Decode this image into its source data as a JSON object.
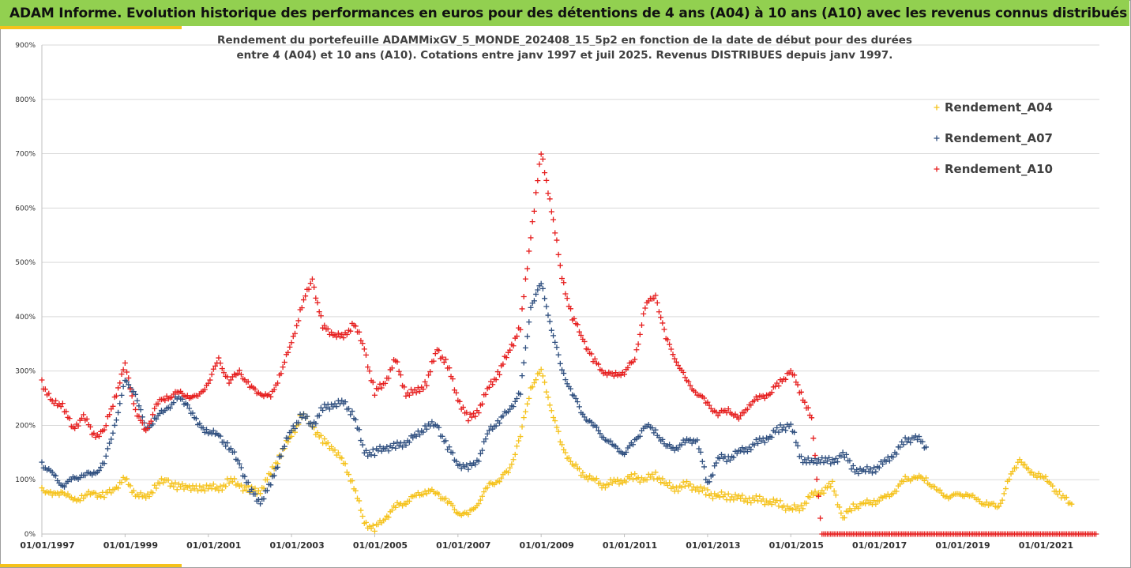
{
  "banner": {
    "title": "ADAM Informe. Evolution historique des performances en euros pour des détentions de 4 ans (A04) à 10 ans (A10) avec les revenus connus distribués"
  },
  "colors": {
    "banner_bg": "#92d050",
    "accent": "#f5c21b",
    "A04": "#f5c21b",
    "A07": "#2f4f7f",
    "A10": "#e61e1e"
  },
  "chart_data": {
    "type": "scatter",
    "title_lines": [
      "Rendement du portefeuille ADAMMixGV_5_MONDE_202408_15_5p2 en fonction de la date de début pour des durées",
      "entre 4 (A04) et 10 ans (A10). Cotations entre janv 1997 et juil 2025. Revenus DISTRIBUES depuis janv 1997."
    ],
    "x_type": "date",
    "xlim": [
      "1997-01-01",
      "2022-06-01"
    ],
    "ylim": [
      0,
      900
    ],
    "y_unit": "%",
    "y_ticks": [
      0,
      100,
      200,
      300,
      400,
      500,
      600,
      700,
      800,
      900
    ],
    "y_tick_labels": [
      "0%",
      "100%",
      "200%",
      "300%",
      "400%",
      "500%",
      "600%",
      "700%",
      "800%",
      "900%"
    ],
    "x_ticks": [
      "1997-01-01",
      "1999-01-01",
      "2001-01-01",
      "2003-01-01",
      "2005-01-01",
      "2007-01-01",
      "2009-01-01",
      "2011-01-01",
      "2013-01-01",
      "2015-01-01",
      "2017-01-01",
      "2019-01-01",
      "2021-01-01"
    ],
    "x_tick_labels": [
      "01/01/1997",
      "01/01/1999",
      "01/01/2001",
      "01/01/2003",
      "01/01/2005",
      "01/01/2007",
      "01/01/2009",
      "01/01/2011",
      "01/01/2013",
      "01/01/2015",
      "01/01/2017",
      "01/01/2019",
      "01/01/2021"
    ],
    "marker": "+",
    "grid": "horizontal",
    "legend_position": "top-right",
    "series": [
      {
        "name": "Rendement_A04",
        "color": "#f5c21b",
        "points": [
          [
            "1997-01",
            85
          ],
          [
            "1997-04",
            70
          ],
          [
            "1997-07",
            80
          ],
          [
            "1997-10",
            60
          ],
          [
            "1998-01",
            70
          ],
          [
            "1998-04",
            75
          ],
          [
            "1998-07",
            70
          ],
          [
            "1998-10",
            85
          ],
          [
            "1999-01",
            100
          ],
          [
            "1999-04",
            75
          ],
          [
            "1999-07",
            65
          ],
          [
            "1999-10",
            90
          ],
          [
            "2000-01",
            100
          ],
          [
            "2000-04",
            85
          ],
          [
            "2000-07",
            90
          ],
          [
            "2000-10",
            80
          ],
          [
            "2001-01",
            90
          ],
          [
            "2001-04",
            80
          ],
          [
            "2001-07",
            100
          ],
          [
            "2001-10",
            90
          ],
          [
            "2002-01",
            80
          ],
          [
            "2002-04",
            80
          ],
          [
            "2002-07",
            110
          ],
          [
            "2002-10",
            150
          ],
          [
            "2003-01",
            180
          ],
          [
            "2003-04",
            220
          ],
          [
            "2003-07",
            200
          ],
          [
            "2003-10",
            170
          ],
          [
            "2004-01",
            160
          ],
          [
            "2004-04",
            130
          ],
          [
            "2004-07",
            90
          ],
          [
            "2004-10",
            20
          ],
          [
            "2005-01",
            10
          ],
          [
            "2005-04",
            30
          ],
          [
            "2005-07",
            50
          ],
          [
            "2005-10",
            60
          ],
          [
            "2006-01",
            70
          ],
          [
            "2006-04",
            80
          ],
          [
            "2006-07",
            75
          ],
          [
            "2006-10",
            60
          ],
          [
            "2007-01",
            40
          ],
          [
            "2007-04",
            35
          ],
          [
            "2007-07",
            60
          ],
          [
            "2007-10",
            90
          ],
          [
            "2008-01",
            100
          ],
          [
            "2008-04",
            120
          ],
          [
            "2008-07",
            180
          ],
          [
            "2008-10",
            270
          ],
          [
            "2009-01",
            300
          ],
          [
            "2009-04",
            230
          ],
          [
            "2009-07",
            160
          ],
          [
            "2009-10",
            130
          ],
          [
            "2010-01",
            110
          ],
          [
            "2010-04",
            100
          ],
          [
            "2010-07",
            90
          ],
          [
            "2010-10",
            95
          ],
          [
            "2011-01",
            100
          ],
          [
            "2011-04",
            105
          ],
          [
            "2011-07",
            100
          ],
          [
            "2011-10",
            110
          ],
          [
            "2012-01",
            90
          ],
          [
            "2012-04",
            85
          ],
          [
            "2012-07",
            90
          ],
          [
            "2012-10",
            85
          ],
          [
            "2013-01",
            75
          ],
          [
            "2013-04",
            70
          ],
          [
            "2013-07",
            70
          ],
          [
            "2013-10",
            65
          ],
          [
            "2014-01",
            65
          ],
          [
            "2014-04",
            62
          ],
          [
            "2014-07",
            60
          ],
          [
            "2014-10",
            55
          ],
          [
            "2015-01",
            45
          ],
          [
            "2015-04",
            50
          ],
          [
            "2015-07",
            70
          ],
          [
            "2015-10",
            80
          ],
          [
            "2016-01",
            90
          ],
          [
            "2016-04",
            30
          ],
          [
            "2016-07",
            50
          ],
          [
            "2016-10",
            55
          ],
          [
            "2017-01",
            60
          ],
          [
            "2017-04",
            65
          ],
          [
            "2017-07",
            80
          ],
          [
            "2017-10",
            100
          ],
          [
            "2018-01",
            105
          ],
          [
            "2018-04",
            100
          ],
          [
            "2018-07",
            80
          ],
          [
            "2018-10",
            70
          ],
          [
            "2019-01",
            70
          ],
          [
            "2019-04",
            75
          ],
          [
            "2019-07",
            60
          ],
          [
            "2019-10",
            55
          ],
          [
            "2020-01",
            50
          ],
          [
            "2020-04",
            100
          ],
          [
            "2020-07",
            140
          ],
          [
            "2020-10",
            110
          ],
          [
            "2021-01",
            110
          ],
          [
            "2021-04",
            90
          ],
          [
            "2021-07",
            70
          ],
          [
            "2021-10",
            55
          ]
        ]
      },
      {
        "name": "Rendement_A07",
        "color": "#2f4f7f",
        "points": [
          [
            "1997-01",
            130
          ],
          [
            "1997-04",
            110
          ],
          [
            "1997-07",
            90
          ],
          [
            "1997-10",
            100
          ],
          [
            "1998-01",
            110
          ],
          [
            "1998-04",
            110
          ],
          [
            "1998-07",
            130
          ],
          [
            "1998-10",
            200
          ],
          [
            "1999-01",
            280
          ],
          [
            "1999-04",
            260
          ],
          [
            "1999-07",
            190
          ],
          [
            "1999-10",
            215
          ],
          [
            "2000-01",
            230
          ],
          [
            "2000-04",
            250
          ],
          [
            "2000-07",
            240
          ],
          [
            "2000-10",
            200
          ],
          [
            "2001-01",
            190
          ],
          [
            "2001-04",
            180
          ],
          [
            "2001-07",
            160
          ],
          [
            "2001-10",
            130
          ],
          [
            "2002-01",
            80
          ],
          [
            "2002-04",
            60
          ],
          [
            "2002-07",
            90
          ],
          [
            "2002-10",
            150
          ],
          [
            "2003-01",
            190
          ],
          [
            "2003-04",
            220
          ],
          [
            "2003-07",
            200
          ],
          [
            "2003-10",
            230
          ],
          [
            "2004-01",
            240
          ],
          [
            "2004-04",
            240
          ],
          [
            "2004-07",
            220
          ],
          [
            "2004-10",
            150
          ],
          [
            "2005-01",
            150
          ],
          [
            "2005-04",
            160
          ],
          [
            "2005-07",
            160
          ],
          [
            "2005-10",
            170
          ],
          [
            "2006-01",
            180
          ],
          [
            "2006-04",
            200
          ],
          [
            "2006-07",
            200
          ],
          [
            "2006-10",
            160
          ],
          [
            "2007-01",
            130
          ],
          [
            "2007-04",
            120
          ],
          [
            "2007-07",
            140
          ],
          [
            "2007-10",
            190
          ],
          [
            "2008-01",
            210
          ],
          [
            "2008-04",
            230
          ],
          [
            "2008-07",
            260
          ],
          [
            "2008-10",
            420
          ],
          [
            "2009-01",
            460
          ],
          [
            "2009-04",
            380
          ],
          [
            "2009-07",
            300
          ],
          [
            "2009-10",
            260
          ],
          [
            "2010-01",
            220
          ],
          [
            "2010-04",
            200
          ],
          [
            "2010-07",
            180
          ],
          [
            "2010-10",
            160
          ],
          [
            "2011-01",
            150
          ],
          [
            "2011-04",
            170
          ],
          [
            "2011-07",
            200
          ],
          [
            "2011-10",
            190
          ],
          [
            "2012-01",
            160
          ],
          [
            "2012-04",
            160
          ],
          [
            "2012-07",
            170
          ],
          [
            "2012-10",
            175
          ],
          [
            "2013-01",
            90
          ],
          [
            "2013-04",
            140
          ],
          [
            "2013-07",
            140
          ],
          [
            "2013-10",
            150
          ],
          [
            "2014-01",
            160
          ],
          [
            "2014-04",
            170
          ],
          [
            "2014-07",
            180
          ],
          [
            "2014-10",
            195
          ],
          [
            "2015-01",
            200
          ],
          [
            "2015-04",
            140
          ],
          [
            "2015-07",
            130
          ],
          [
            "2015-10",
            140
          ],
          [
            "2016-01",
            130
          ],
          [
            "2016-04",
            150
          ],
          [
            "2016-07",
            120
          ],
          [
            "2016-10",
            115
          ],
          [
            "2017-01",
            120
          ],
          [
            "2017-04",
            130
          ],
          [
            "2017-07",
            150
          ],
          [
            "2017-10",
            170
          ],
          [
            "2018-01",
            180
          ],
          [
            "2018-04",
            160
          ]
        ]
      },
      {
        "name": "Rendement_A10",
        "color": "#e61e1e",
        "points": [
          [
            "1997-01",
            280
          ],
          [
            "1997-04",
            240
          ],
          [
            "1997-07",
            240
          ],
          [
            "1997-10",
            190
          ],
          [
            "1998-01",
            220
          ],
          [
            "1998-04",
            180
          ],
          [
            "1998-07",
            190
          ],
          [
            "1998-10",
            250
          ],
          [
            "1999-01",
            310
          ],
          [
            "1999-04",
            230
          ],
          [
            "1999-07",
            185
          ],
          [
            "1999-10",
            240
          ],
          [
            "2000-01",
            250
          ],
          [
            "2000-04",
            260
          ],
          [
            "2000-07",
            255
          ],
          [
            "2000-10",
            250
          ],
          [
            "2001-01",
            280
          ],
          [
            "2001-04",
            320
          ],
          [
            "2001-07",
            280
          ],
          [
            "2001-10",
            300
          ],
          [
            "2002-01",
            270
          ],
          [
            "2002-04",
            260
          ],
          [
            "2002-07",
            250
          ],
          [
            "2002-10",
            300
          ],
          [
            "2003-01",
            350
          ],
          [
            "2003-04",
            420
          ],
          [
            "2003-07",
            470
          ],
          [
            "2003-10",
            380
          ],
          [
            "2004-01",
            370
          ],
          [
            "2004-04",
            360
          ],
          [
            "2004-07",
            390
          ],
          [
            "2004-10",
            340
          ],
          [
            "2005-01",
            260
          ],
          [
            "2005-04",
            280
          ],
          [
            "2005-07",
            320
          ],
          [
            "2005-10",
            260
          ],
          [
            "2006-01",
            260
          ],
          [
            "2006-04",
            280
          ],
          [
            "2006-07",
            340
          ],
          [
            "2006-10",
            310
          ],
          [
            "2007-01",
            250
          ],
          [
            "2007-04",
            210
          ],
          [
            "2007-07",
            230
          ],
          [
            "2007-10",
            270
          ],
          [
            "2008-01",
            300
          ],
          [
            "2008-04",
            340
          ],
          [
            "2008-07",
            380
          ],
          [
            "2008-10",
            550
          ],
          [
            "2009-01",
            700
          ],
          [
            "2009-04",
            600
          ],
          [
            "2009-07",
            470
          ],
          [
            "2009-10",
            400
          ],
          [
            "2010-01",
            360
          ],
          [
            "2010-04",
            320
          ],
          [
            "2010-07",
            300
          ],
          [
            "2010-10",
            290
          ],
          [
            "2011-01",
            300
          ],
          [
            "2011-04",
            320
          ],
          [
            "2011-07",
            420
          ],
          [
            "2011-10",
            440
          ],
          [
            "2012-01",
            360
          ],
          [
            "2012-04",
            320
          ],
          [
            "2012-07",
            280
          ],
          [
            "2012-10",
            260
          ],
          [
            "2013-01",
            240
          ],
          [
            "2013-04",
            220
          ],
          [
            "2013-07",
            230
          ],
          [
            "2013-10",
            210
          ],
          [
            "2014-01",
            240
          ],
          [
            "2014-04",
            250
          ],
          [
            "2014-07",
            260
          ],
          [
            "2014-10",
            280
          ],
          [
            "2015-01",
            300
          ],
          [
            "2015-04",
            260
          ],
          [
            "2015-07",
            210
          ],
          [
            "2015-10",
            0
          ],
          [
            "2016-06",
            0
          ],
          [
            "2017-01",
            0
          ],
          [
            "2017-07",
            0
          ],
          [
            "2018-01",
            0
          ],
          [
            "2018-07",
            0
          ],
          [
            "2019-01",
            0
          ],
          [
            "2019-07",
            0
          ],
          [
            "2020-01",
            0
          ],
          [
            "2020-07",
            0
          ],
          [
            "2021-01",
            0
          ],
          [
            "2021-07",
            0
          ],
          [
            "2022-01",
            0
          ],
          [
            "2022-05",
            0
          ]
        ]
      }
    ]
  }
}
